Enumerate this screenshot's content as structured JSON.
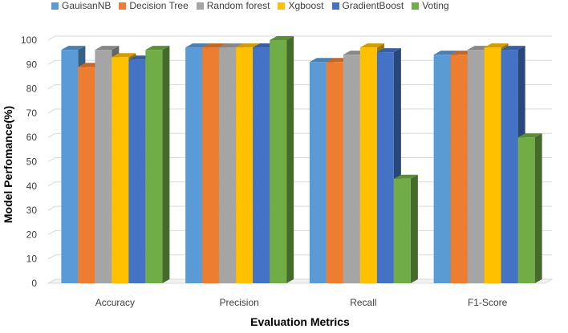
{
  "chart_data": {
    "type": "bar",
    "style": "3d-clustered-column",
    "categories": [
      "Accuracy",
      "Precision",
      "Recall",
      "F1-Score"
    ],
    "series": [
      {
        "name": "GauisanNB",
        "color": "#5B9BD5",
        "values": [
          96,
          97,
          91,
          94
        ]
      },
      {
        "name": "Decision Tree",
        "color": "#ED7D31",
        "values": [
          89,
          97,
          91,
          94
        ]
      },
      {
        "name": "Random forest",
        "color": "#A5A5A5",
        "values": [
          96,
          97,
          94,
          96
        ]
      },
      {
        "name": "Xgboost",
        "color": "#FFC000",
        "values": [
          93,
          97,
          97,
          97
        ]
      },
      {
        "name": "GradientBoost",
        "color": "#4472C4",
        "values": [
          92,
          97,
          95,
          96
        ]
      },
      {
        "name": "Voting",
        "color": "#70AD47",
        "values": [
          96,
          100,
          43,
          60
        ]
      }
    ],
    "xlabel": "Evaluation Metrics",
    "ylabel": "Model Perfomance(%)",
    "ylim": [
      0,
      100
    ],
    "yticks": [
      "0",
      "10",
      "20",
      "30",
      "40",
      "50",
      "60",
      "70",
      "80",
      "90",
      "100"
    ],
    "grid": true,
    "legend": "top"
  }
}
